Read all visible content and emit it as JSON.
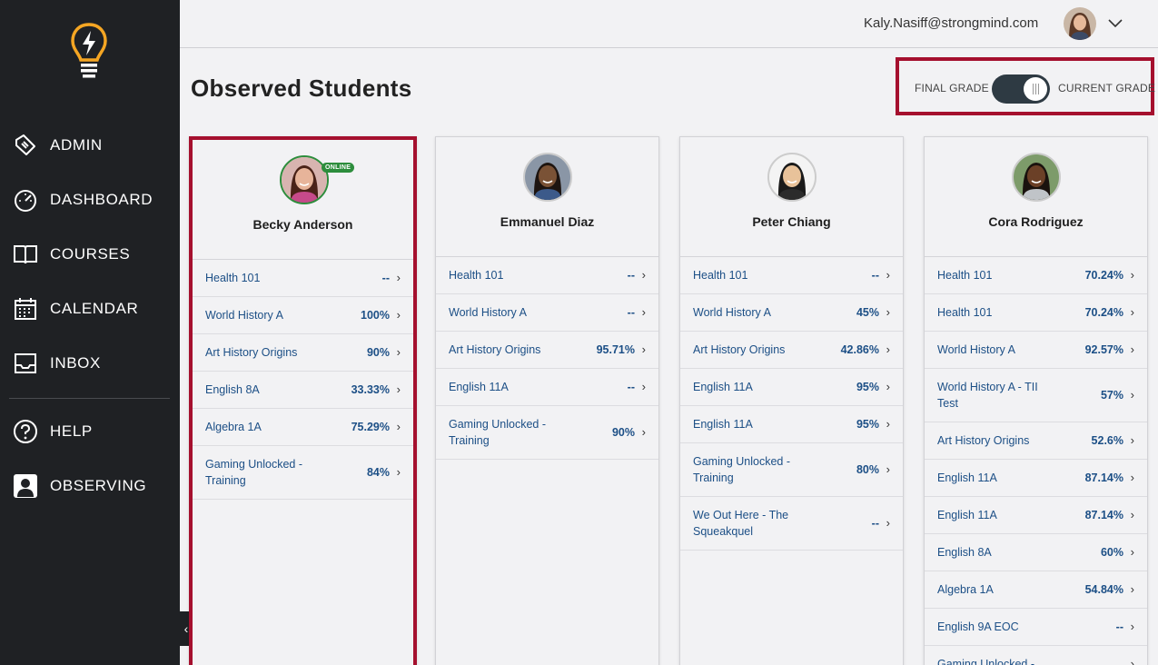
{
  "sidebar": {
    "items": [
      {
        "label": "ADMIN",
        "icon": "admin-tag-icon"
      },
      {
        "label": "DASHBOARD",
        "icon": "speedometer-icon"
      },
      {
        "label": "COURSES",
        "icon": "open-book-icon"
      },
      {
        "label": "CALENDAR",
        "icon": "calendar-icon"
      },
      {
        "label": "INBOX",
        "icon": "inbox-icon"
      },
      {
        "label": "HELP",
        "icon": "help-circle-icon"
      },
      {
        "label": "OBSERVING",
        "icon": "observer-profile-icon"
      }
    ],
    "collapse_glyph": "‹"
  },
  "header": {
    "email": "Kaly.Nasiff@strongmind.com"
  },
  "page": {
    "title": "Observed Students"
  },
  "grade_toggle": {
    "left_label": "FINAL GRADE",
    "right_label": "CURRENT GRADE"
  },
  "colors": {
    "accent_red": "#a5102e",
    "link_blue": "#1c4f86",
    "online_green": "#2d8d3c",
    "sidebar_bg": "#1f2124"
  },
  "students": [
    {
      "name": "Becky Anderson",
      "online": true,
      "online_label": "ONLINE",
      "courses": [
        {
          "name": "Health 101",
          "grade": "--"
        },
        {
          "name": "World History A",
          "grade": "100%"
        },
        {
          "name": "Art History Origins",
          "grade": "90%"
        },
        {
          "name": "English 8A",
          "grade": "33.33%"
        },
        {
          "name": "Algebra 1A",
          "grade": "75.29%"
        },
        {
          "name": "Gaming Unlocked - Training",
          "grade": "84%"
        }
      ]
    },
    {
      "name": "Emmanuel Diaz",
      "online": false,
      "courses": [
        {
          "name": "Health 101",
          "grade": "--"
        },
        {
          "name": "World History A",
          "grade": "--"
        },
        {
          "name": "Art History Origins",
          "grade": "95.71%"
        },
        {
          "name": "English 11A",
          "grade": "--"
        },
        {
          "name": "Gaming Unlocked - Training",
          "grade": "90%"
        }
      ]
    },
    {
      "name": "Peter Chiang",
      "online": false,
      "courses": [
        {
          "name": "Health 101",
          "grade": "--"
        },
        {
          "name": "World History A",
          "grade": "45%"
        },
        {
          "name": "Art History Origins",
          "grade": "42.86%"
        },
        {
          "name": "English 11A",
          "grade": "95%"
        },
        {
          "name": "English 11A",
          "grade": "95%"
        },
        {
          "name": "Gaming Unlocked - Training",
          "grade": "80%"
        },
        {
          "name": "We Out Here - The Squeakquel",
          "grade": "--"
        }
      ]
    },
    {
      "name": "Cora Rodriguez",
      "online": false,
      "courses": [
        {
          "name": "Health 101",
          "grade": "70.24%"
        },
        {
          "name": "Health 101",
          "grade": "70.24%"
        },
        {
          "name": "World History A",
          "grade": "92.57%"
        },
        {
          "name": "World History A - TII Test",
          "grade": "57%"
        },
        {
          "name": "Art History Origins",
          "grade": "52.6%"
        },
        {
          "name": "English 11A",
          "grade": "87.14%"
        },
        {
          "name": "English 11A",
          "grade": "87.14%"
        },
        {
          "name": "English 8A",
          "grade": "60%"
        },
        {
          "name": "Algebra 1A",
          "grade": "54.84%"
        },
        {
          "name": "English 9A EOC",
          "grade": "--"
        },
        {
          "name": "Gaming Unlocked -",
          "grade": ""
        }
      ]
    }
  ]
}
